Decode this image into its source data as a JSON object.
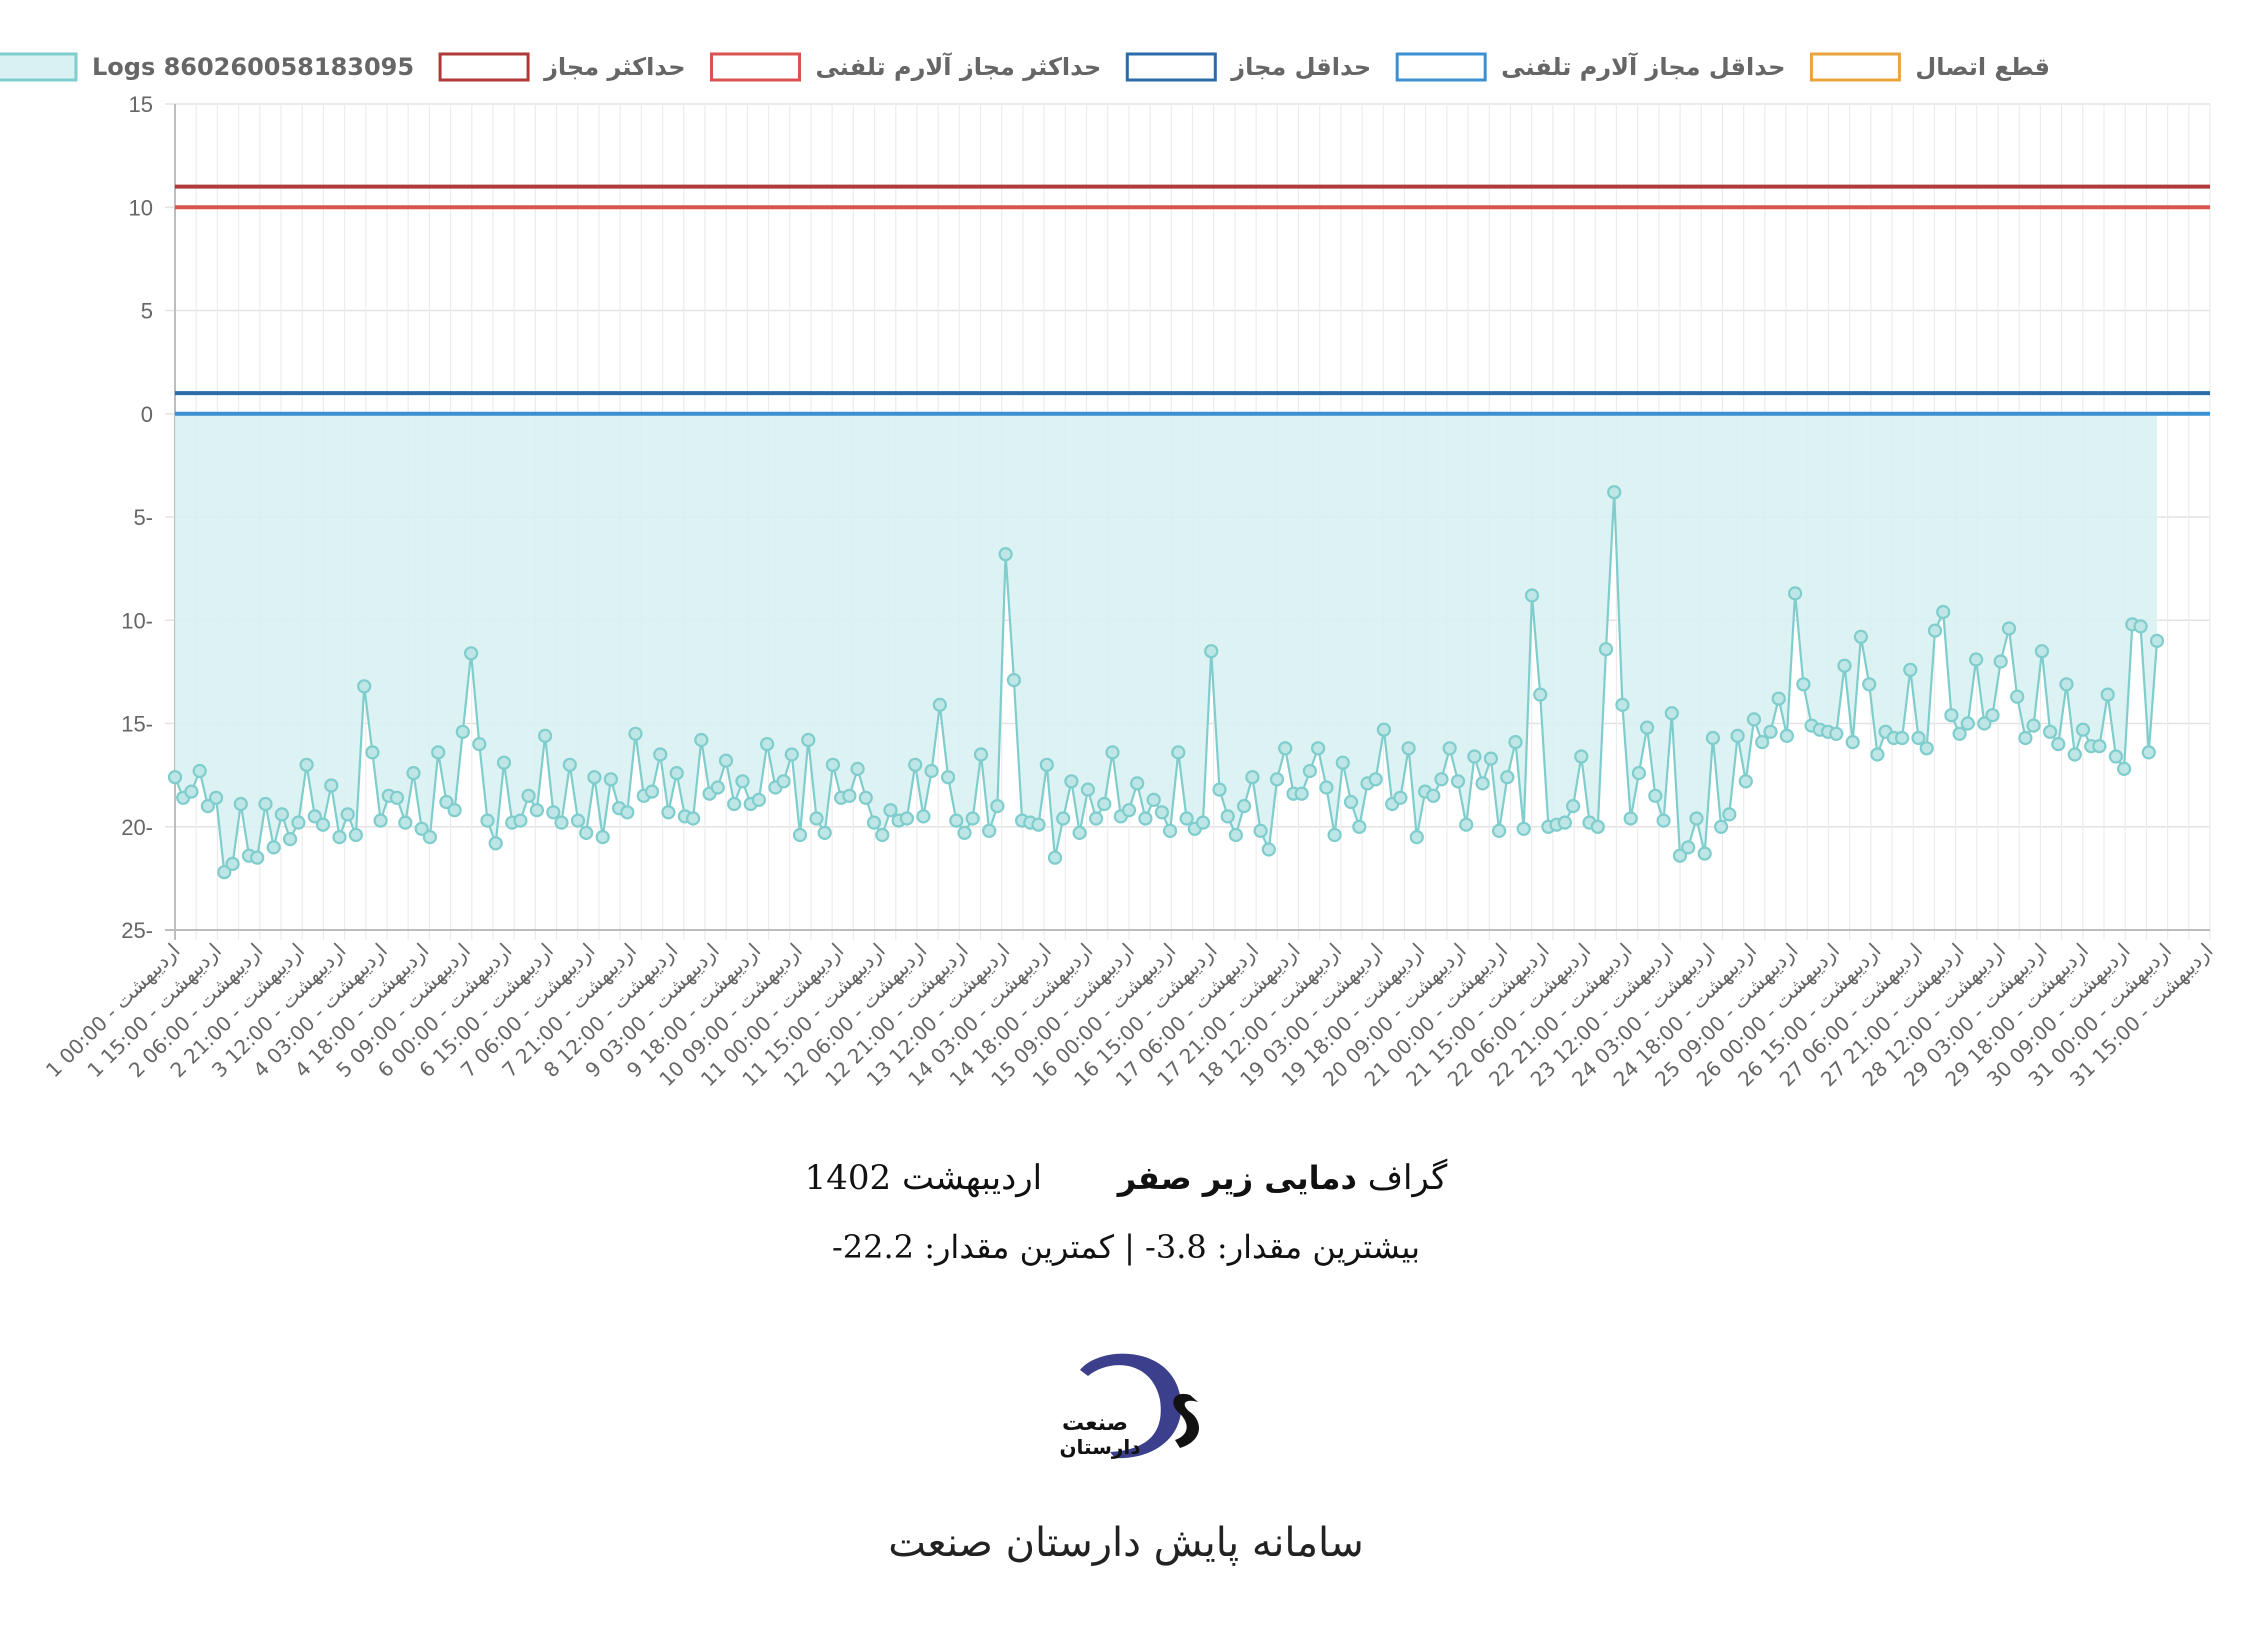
{
  "chart_data": {
    "type": "line",
    "title": "",
    "xlabel": "",
    "ylabel": "",
    "ylim": [
      -25,
      15
    ],
    "y_ticks": [
      "15",
      "10",
      "5",
      "0",
      "5-",
      "10-",
      "15-",
      "20-",
      "25-"
    ],
    "y_tick_values": [
      15,
      10,
      5,
      0,
      -5,
      -10,
      -15,
      -20,
      -25
    ],
    "grid": true,
    "legend_position": "top",
    "legend": [
      {
        "name": "Logs 860260058183095",
        "color": "#7fcdcc",
        "fill": "#d9f1f2"
      },
      {
        "name": "حداکثر مجاز",
        "color": "#b03a3a"
      },
      {
        "name": "حداکثر مجاز آلارم تلفنی",
        "color": "#d9534f"
      },
      {
        "name": "حداقل مجاز",
        "color": "#2b6ca8"
      },
      {
        "name": "حداقل مجاز آلارم تلفنی",
        "color": "#3c8fd0"
      },
      {
        "name": "قطع اتصال",
        "color": "#e8a53d"
      }
    ],
    "x_ticks": [
      "1 اردیبهشت - 00:00",
      "1 اردیبهشت - 15:00",
      "2 اردیبهشت - 06:00",
      "2 اردیبهشت - 21:00",
      "3 اردیبهشت - 12:00",
      "4 اردیبهشت - 03:00",
      "4 اردیبهشت - 18:00",
      "5 اردیبهشت - 09:00",
      "6 اردیبهشت - 00:00",
      "6 اردیبهشت - 15:00",
      "7 اردیبهشت - 06:00",
      "7 اردیبهشت - 21:00",
      "8 اردیبهشت - 12:00",
      "9 اردیبهشت - 03:00",
      "9 اردیبهشت - 18:00",
      "10 اردیبهشت - 09:00",
      "11 اردیبهشت - 00:00",
      "11 اردیبهشت - 15:00",
      "12 اردیبهشت - 06:00",
      "12 اردیبهشت - 21:00",
      "13 اردیبهشت - 12:00",
      "14 اردیبهشت - 03:00",
      "14 اردیبهشت - 18:00",
      "15 اردیبهشت - 09:00",
      "16 اردیبهشت - 00:00",
      "16 اردیبهشت - 15:00",
      "17 اردیبهشت - 06:00",
      "17 اردیبهشت - 21:00",
      "18 اردیبهشت - 12:00",
      "19 اردیبهشت - 03:00",
      "19 اردیبهشت - 18:00",
      "20 اردیبهشت - 09:00",
      "21 اردیبهشت - 00:00",
      "21 اردیبهشت - 15:00",
      "22 اردیبهشت - 06:00",
      "22 اردیبهشت - 21:00",
      "23 اردیبهشت - 12:00",
      "24 اردیبهشت - 03:00",
      "24 اردیبهشت - 18:00",
      "25 اردیبهشت - 09:00",
      "26 اردیبهشت - 00:00",
      "26 اردیبهشت - 15:00",
      "27 اردیبهشت - 06:00",
      "27 اردیبهشت - 21:00",
      "28 اردیبهشت - 12:00",
      "29 اردیبهشت - 03:00",
      "29 اردیبهشت - 18:00",
      "30 اردیبهشت - 09:00",
      "31 اردیبهشت - 00:00",
      "31 اردیبهشت - 15:00"
    ],
    "thresholds": [
      {
        "name": "حداکثر مجاز",
        "value": 11,
        "color": "#b03a3a"
      },
      {
        "name": "حداکثر مجاز آلارم تلفنی",
        "value": 10,
        "color": "#d9534f"
      },
      {
        "name": "حداقل مجاز",
        "value": 1,
        "color": "#2b6ca8"
      },
      {
        "name": "حداقل مجاز آلارم تلفنی",
        "value": 0,
        "color": "#3c8fd0"
      }
    ],
    "series": [
      {
        "name": "Logs 860260058183095",
        "color": "#7fcdcc",
        "fill": "#d9f1f2",
        "values": [
          -17.6,
          -18.6,
          -18.3,
          -17.3,
          -19.0,
          -18.6,
          -22.2,
          -21.8,
          -18.9,
          -21.4,
          -21.5,
          -18.9,
          -21.0,
          -19.4,
          -20.6,
          -19.8,
          -17.0,
          -19.5,
          -19.9,
          -18.0,
          -20.5,
          -19.4,
          -20.4,
          -13.2,
          -16.4,
          -19.7,
          -18.5,
          -18.6,
          -19.8,
          -17.4,
          -20.1,
          -20.5,
          -16.4,
          -18.8,
          -19.2,
          -15.4,
          -11.6,
          -16.0,
          -19.7,
          -20.8,
          -16.9,
          -19.8,
          -19.7,
          -18.5,
          -19.2,
          -15.6,
          -19.3,
          -19.8,
          -17.0,
          -19.7,
          -20.3,
          -17.6,
          -20.5,
          -17.7,
          -19.1,
          -19.3,
          -15.5,
          -18.5,
          -18.3,
          -16.5,
          -19.3,
          -17.4,
          -19.5,
          -19.6,
          -15.8,
          -18.4,
          -18.1,
          -16.8,
          -18.9,
          -17.8,
          -18.9,
          -18.7,
          -16.0,
          -18.1,
          -17.8,
          -16.5,
          -20.4,
          -15.8,
          -19.6,
          -20.3,
          -17.0,
          -18.6,
          -18.5,
          -17.2,
          -18.6,
          -19.8,
          -20.4,
          -19.2,
          -19.7,
          -19.6,
          -17.0,
          -19.5,
          -17.3,
          -14.1,
          -17.6,
          -19.7,
          -20.3,
          -19.6,
          -16.5,
          -20.2,
          -19.0,
          -6.8,
          -12.9,
          -19.7,
          -19.8,
          -19.9,
          -17.0,
          -21.5,
          -19.6,
          -17.8,
          -20.3,
          -18.2,
          -19.6,
          -18.9,
          -16.4,
          -19.5,
          -19.2,
          -17.9,
          -19.6,
          -18.7,
          -19.3,
          -20.2,
          -16.4,
          -19.6,
          -20.1,
          -19.8,
          -11.5,
          -18.2,
          -19.5,
          -20.4,
          -19.0,
          -17.6,
          -20.2,
          -21.1,
          -17.7,
          -16.2,
          -18.4,
          -18.4,
          -17.3,
          -16.2,
          -18.1,
          -20.4,
          -16.9,
          -18.8,
          -20.0,
          -17.9,
          -17.7,
          -15.3,
          -18.9,
          -18.6,
          -16.2,
          -20.5,
          -18.3,
          -18.5,
          -17.7,
          -16.2,
          -17.8,
          -19.9,
          -16.6,
          -17.9,
          -16.7,
          -20.2,
          -17.6,
          -15.9,
          -20.1,
          -8.8,
          -13.6,
          -20.0,
          -19.9,
          -19.8,
          -19.0,
          -16.6,
          -19.8,
          -20.0,
          -11.4,
          -3.8,
          -14.1,
          -19.6,
          -17.4,
          -15.2,
          -18.5,
          -19.7,
          -14.5,
          -21.4,
          -21.0,
          -19.6,
          -21.3,
          -15.7,
          -20.0,
          -19.4,
          -15.6,
          -17.8,
          -14.8,
          -15.9,
          -15.4,
          -13.8,
          -15.6,
          -8.7,
          -13.1,
          -15.1,
          -15.3,
          -15.4,
          -15.5,
          -12.2,
          -15.9,
          -10.8,
          -13.1,
          -16.5,
          -15.4,
          -15.7,
          -15.7,
          -12.4,
          -15.7,
          -16.2,
          -10.5,
          -9.6,
          -14.6,
          -15.5,
          -15.0,
          -11.9,
          -15.0,
          -14.6,
          -12.0,
          -10.4,
          -13.7,
          -15.7,
          -15.1,
          -11.5,
          -15.4,
          -16.0,
          -13.1,
          -16.5,
          -15.3,
          -16.1,
          -16.1,
          -13.6,
          -16.6,
          -17.2,
          -10.2,
          -10.3,
          -16.4,
          -11.0
        ]
      }
    ]
  },
  "caption": {
    "title_prefix": "گراف",
    "title_bold": "دمایی زیر صفر",
    "title_suffix": "اردیبهشت 1402",
    "stats": "بیشترین مقدار: 3.8- | کمترین مقدار: 22.2-"
  },
  "logo": {
    "text_top": "صنعت",
    "text_bottom": "دارستان",
    "colors": {
      "d": "#3b3f8c",
      "s": "#111111"
    }
  },
  "footer": {
    "text": "سامانه پایش دارستان صنعت"
  }
}
